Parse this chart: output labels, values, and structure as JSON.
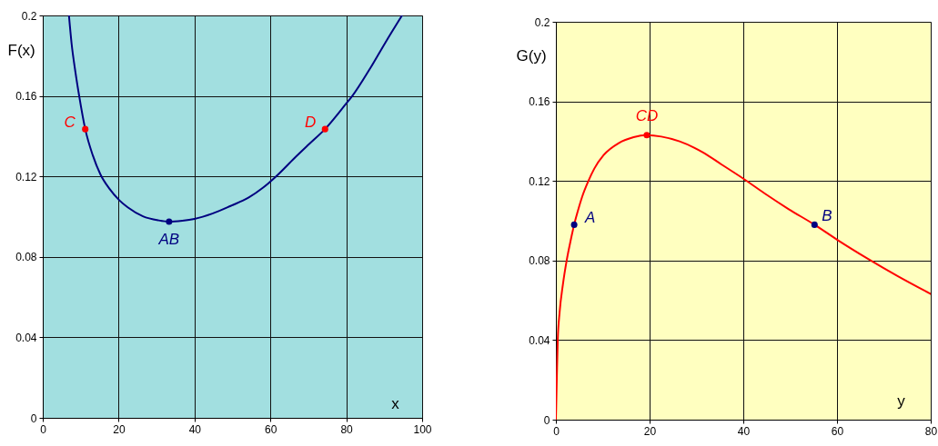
{
  "chart_data": [
    {
      "type": "line",
      "xlabel": "x",
      "ylabel": "F(x)",
      "xlim": [
        0,
        100
      ],
      "xticks": [
        0,
        20,
        40,
        60,
        80,
        100
      ],
      "ylim": [
        0,
        0.2
      ],
      "yticks": [
        0,
        0.04,
        0.08,
        0.12,
        0.16,
        0.2
      ],
      "grid": true,
      "series": [
        {
          "color": "#000080",
          "x": [
            6.9,
            7.6,
            8.6,
            9.6,
            11.2,
            13.2,
            15.2,
            17.6,
            20.1,
            22.4,
            26.4,
            30.4,
            33.3,
            36.8,
            40.0,
            44.7,
            49.5,
            54.3,
            58.0,
            61.5,
            66.3,
            70.3,
            74.4,
            79.9,
            81.6,
            86.3,
            90.3,
            94.7
          ],
          "values": [
            0.2,
            0.186,
            0.172,
            0.16,
            0.1435,
            0.1304,
            0.121,
            0.1138,
            0.1083,
            0.1046,
            0.1002,
            0.0982,
            0.0975,
            0.098,
            0.0989,
            0.1015,
            0.1053,
            0.1095,
            0.1143,
            0.12,
            0.129,
            0.1362,
            0.1435,
            0.156,
            0.16,
            0.1737,
            0.1865,
            0.2
          ]
        },
        {
          "name": "C",
          "type": "scatter",
          "marker": "circle",
          "color": "#ff0000",
          "x": [
            11.2
          ],
          "values": [
            0.1435
          ]
        },
        {
          "name": "D",
          "type": "scatter",
          "marker": "circle",
          "color": "#ff0000",
          "x": [
            74.4
          ],
          "values": [
            0.1435
          ]
        },
        {
          "name": "AB",
          "type": "scatter",
          "marker": "circle",
          "color": "#000080",
          "x": [
            33.3
          ],
          "values": [
            0.0975
          ]
        }
      ]
    },
    {
      "type": "line",
      "xlabel": "y",
      "ylabel": "G(y)",
      "xlim": [
        0,
        80
      ],
      "xticks": [
        0,
        20,
        40,
        60,
        80
      ],
      "ylim": [
        0,
        0.2
      ],
      "yticks": [
        0,
        0.04,
        0.08,
        0.12,
        0.16,
        0.2
      ],
      "grid": true,
      "series": [
        {
          "color": "#ff0000",
          "x": [
            0,
            0.2,
            0.4,
            0.8,
            1.5,
            2.3,
            3.1,
            3.9,
            4.7,
            5.6,
            6.9,
            8.2,
            10.2,
            13.4,
            16.6,
            19.4,
            22.5,
            26.4,
            31.5,
            35.4,
            40.1,
            44.5,
            49.7,
            55.2,
            60.0,
            66.5,
            73.0,
            80.0
          ],
          "values": [
            0,
            0.021,
            0.04,
            0.054,
            0.068,
            0.08,
            0.0895,
            0.098,
            0.105,
            0.112,
            0.1198,
            0.1262,
            0.133,
            0.139,
            0.142,
            0.143,
            0.1423,
            0.1399,
            0.1342,
            0.1282,
            0.121,
            0.1138,
            0.1058,
            0.098,
            0.0905,
            0.081,
            0.0721,
            0.0632
          ]
        },
        {
          "name": "A",
          "type": "scatter",
          "marker": "circle",
          "color": "#000080",
          "x": [
            3.9
          ],
          "values": [
            0.098
          ]
        },
        {
          "name": "B",
          "type": "scatter",
          "marker": "circle",
          "color": "#000080",
          "x": [
            55.2
          ],
          "values": [
            0.098
          ]
        },
        {
          "name": "CD",
          "type": "scatter",
          "marker": "circle",
          "color": "#ff0000",
          "x": [
            19.4
          ],
          "values": [
            0.143
          ]
        }
      ]
    }
  ]
}
